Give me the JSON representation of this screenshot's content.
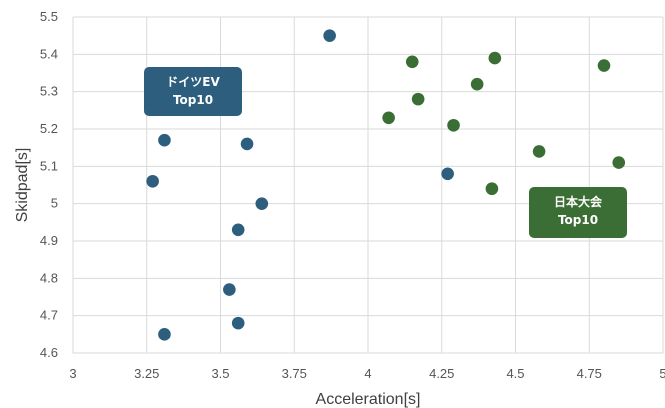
{
  "chart_data": {
    "type": "scatter",
    "title": "",
    "xlabel": "Acceleration[s]",
    "ylabel": "Skidpad[s]",
    "xlim": [
      3,
      5
    ],
    "ylim": [
      4.6,
      5.5
    ],
    "grid": true,
    "x_ticks": [
      3,
      3.25,
      3.5,
      3.75,
      4,
      4.25,
      4.5,
      4.75,
      5
    ],
    "x_tick_labels": [
      "3",
      "3.25",
      "3.5",
      "3.75",
      "4",
      "4.25",
      "4.5",
      "4.75",
      "5"
    ],
    "y_ticks": [
      4.6,
      4.7,
      4.8,
      4.9,
      5,
      5.1,
      5.2,
      5.3,
      5.4,
      5.5
    ],
    "y_tick_labels": [
      "4.6",
      "4.7",
      "4.8",
      "4.9",
      "5",
      "5.1",
      "5.2",
      "5.3",
      "5.4",
      "5.5"
    ],
    "series": [
      {
        "color": "#2e5e7e",
        "x": [
          3.87,
          3.31,
          3.59,
          3.27,
          3.64,
          3.56,
          3.53,
          3.56,
          3.31,
          4.27
        ],
        "y": [
          5.45,
          5.17,
          5.16,
          5.06,
          5.0,
          4.93,
          4.77,
          4.68,
          4.65,
          5.08
        ]
      },
      {
        "color": "#3a6e35",
        "x": [
          4.15,
          4.43,
          4.8,
          4.37,
          4.17,
          4.07,
          4.29,
          4.58,
          4.85,
          4.42
        ],
        "y": [
          5.38,
          5.39,
          5.37,
          5.32,
          5.28,
          5.23,
          5.21,
          5.14,
          5.11,
          5.04
        ]
      }
    ],
    "annotations": [
      {
        "lines": [
          "ドイツEV",
          "Top10"
        ],
        "color": "#2e5e7e"
      },
      {
        "lines": [
          "日本大会",
          "Top10"
        ],
        "color": "#3a6e35"
      }
    ]
  }
}
